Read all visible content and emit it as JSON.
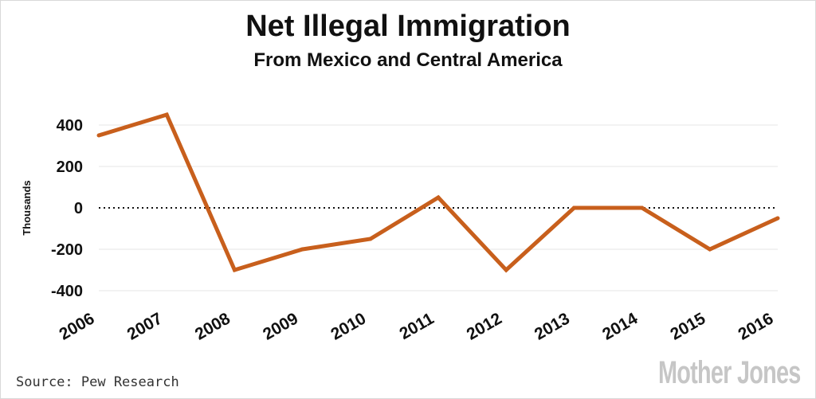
{
  "chart_data": {
    "type": "line",
    "title": "Net Illegal Immigration",
    "subtitle": "From Mexico and Central America",
    "ylabel": "Thousands",
    "xlabel": "",
    "categories": [
      "2006",
      "2007",
      "2008",
      "2009",
      "2010",
      "2011",
      "2012",
      "2013",
      "2014",
      "2015",
      "2016"
    ],
    "series": [
      {
        "values": [
          350,
          450,
          -300,
          -200,
          -150,
          50,
          -300,
          0,
          0,
          -200,
          -50
        ]
      }
    ],
    "y_ticks": [
      400,
      200,
      0,
      -200,
      -400
    ],
    "y_tick_labels": [
      "400",
      "200",
      "0",
      "-200",
      "-400"
    ],
    "ylim": [
      -400,
      400
    ],
    "grid": true,
    "zero_line": "dotted",
    "colors": {
      "line": "#c85f1c",
      "grid": "#e6e6e6",
      "zero": "#111111"
    }
  },
  "footer": {
    "source": "Source: Pew Research",
    "brand": "MotherJones"
  }
}
